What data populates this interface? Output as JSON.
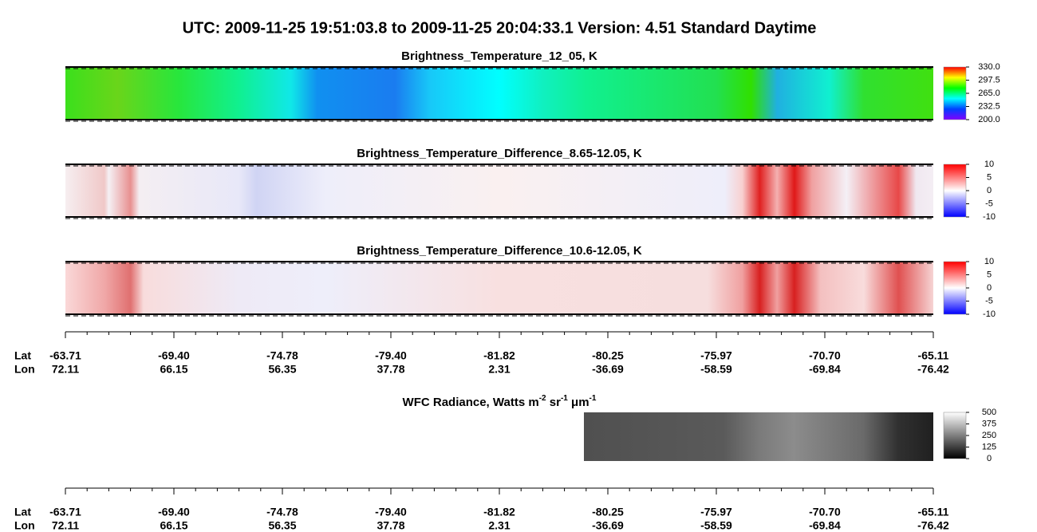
{
  "header": {
    "title": "UTC:  2009-11-25   19:51:03.8  to  2009-11-25   20:04:33.1    Version: 4.51  Standard Daytime"
  },
  "panels": [
    {
      "title": "Brightness_Temperature_12_05, K",
      "colormap": "rainbow",
      "ticks": [
        {
          "value": 330,
          "label": "330.0"
        },
        {
          "value": 297.5,
          "label": "297.5"
        },
        {
          "value": 265,
          "label": "265.0"
        },
        {
          "value": 232.5,
          "label": "232.5"
        },
        {
          "value": 200,
          "label": "200.0"
        }
      ]
    },
    {
      "title": "Brightness_Temperature_Difference_8.65-12.05, K",
      "colormap": "diverging",
      "ticks": [
        10,
        5,
        0,
        -5,
        -10
      ]
    },
    {
      "title": "Brightness_Temperature_Difference_10.6-12.05, K",
      "colormap": "diverging",
      "ticks": [
        10,
        5,
        0,
        -5,
        -10
      ]
    }
  ],
  "radiance": {
    "title_parts": [
      "WFC Radiance, Watts m",
      "-2",
      " sr",
      "-1",
      " μm",
      "-1"
    ],
    "colormap": "gray",
    "ticks": [
      500,
      375,
      250,
      125,
      0
    ]
  },
  "axis": {
    "row_labels": [
      "Lat",
      "Lon"
    ],
    "lat": [
      "-63.71",
      "-69.40",
      "-74.78",
      "-79.40",
      "-81.82",
      "-80.25",
      "-75.97",
      "-70.70",
      "-65.11"
    ],
    "lon": [
      "72.11",
      "66.15",
      "56.35",
      "37.78",
      "2.31",
      "-36.69",
      "-58.59",
      "-69.84",
      "-76.42"
    ]
  }
}
